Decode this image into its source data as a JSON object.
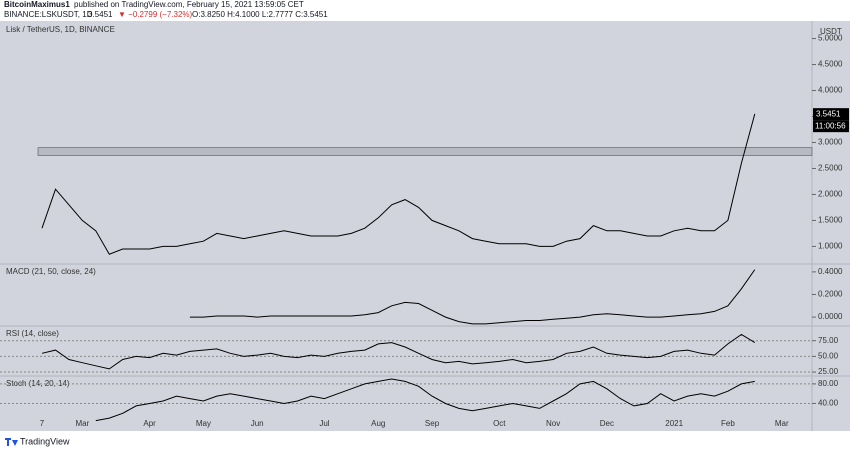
{
  "header": {
    "publisher": "BitcoinMaximus1",
    "published": "published on TradingView.com, February 15, 2021 13:59:05 CET",
    "symbol": "BINANCE:LSKUSDT, 1D",
    "last": "3.5451",
    "change": "▼ −0.2799 (−7.32%)",
    "ohlc": "O:3.8250 H:4.1000 L:2.7777 C:3.5451"
  },
  "footer": "TradingView",
  "chart_data": [
    {
      "type": "line",
      "title": "Lisk / TetherUS, 1D, BINANCE",
      "unit": "USDT",
      "categories": [
        "7",
        null,
        null,
        "Mar",
        null,
        null,
        null,
        null,
        "Apr",
        null,
        null,
        null,
        "May",
        null,
        null,
        null,
        "Jun",
        null,
        null,
        null,
        null,
        "Jul",
        null,
        null,
        null,
        "Aug",
        null,
        null,
        null,
        "Sep",
        null,
        null,
        null,
        null,
        "Oct",
        null,
        null,
        null,
        "Nov",
        null,
        null,
        null,
        "Dec",
        null,
        null,
        null,
        null,
        "2021",
        null,
        null,
        null,
        "Feb",
        null,
        null,
        null,
        "Mar"
      ],
      "series": [
        {
          "name": "LSKUSDT",
          "color": "#000000",
          "values": [
            1.35,
            2.1,
            1.8,
            1.5,
            1.3,
            0.85,
            0.95,
            0.95,
            0.95,
            1.0,
            1.0,
            1.05,
            1.1,
            1.25,
            1.2,
            1.15,
            1.2,
            1.25,
            1.3,
            1.25,
            1.2,
            1.2,
            1.2,
            1.25,
            1.35,
            1.55,
            1.8,
            1.9,
            1.75,
            1.5,
            1.4,
            1.3,
            1.15,
            1.1,
            1.05,
            1.05,
            1.05,
            1.0,
            1.0,
            1.1,
            1.15,
            1.4,
            1.3,
            1.3,
            1.25,
            1.2,
            1.2,
            1.3,
            1.35,
            1.3,
            1.3,
            1.5,
            2.6,
            3.55,
            null,
            null
          ]
        }
      ],
      "ylim": [
        0.7,
        5.28
      ],
      "yticks": [
        {
          "value": 1,
          "label": "1.0000"
        },
        {
          "value": 1.5,
          "label": "1.5000"
        },
        {
          "value": 2,
          "label": "2.0000"
        },
        {
          "value": 2.5,
          "label": "2.5000"
        },
        {
          "value": 3,
          "label": "3.0000"
        },
        {
          "value": 3.5,
          "label": "3.5000"
        },
        {
          "value": 4,
          "label": "4.0000"
        },
        {
          "value": 4.5,
          "label": "4.5000"
        },
        {
          "value": 5,
          "label": "5.0000"
        }
      ],
      "zone": [
        2.75,
        2.9
      ],
      "price_tag": {
        "value": 3.5451,
        "label": "3.5451"
      },
      "countdown": "11:00:56"
    },
    {
      "type": "line",
      "title": "MACD (21, 50, close, 24)",
      "series": [
        {
          "name": "MACD",
          "color": "#000000",
          "values": [
            null,
            null,
            null,
            null,
            null,
            null,
            null,
            null,
            null,
            null,
            null,
            0.0,
            0.0,
            0.01,
            0.01,
            0.01,
            0.0,
            0.01,
            0.01,
            0.01,
            0.01,
            0.01,
            0.01,
            0.01,
            0.02,
            0.04,
            0.1,
            0.13,
            0.12,
            0.06,
            0.0,
            -0.04,
            -0.06,
            -0.06,
            -0.05,
            -0.04,
            -0.03,
            -0.03,
            -0.02,
            -0.01,
            0.0,
            0.02,
            0.03,
            0.02,
            0.01,
            0.0,
            0.0,
            0.01,
            0.02,
            0.03,
            0.05,
            0.1,
            0.25,
            0.42,
            null,
            null
          ]
        }
      ],
      "ylim": [
        -0.07,
        0.452
      ],
      "yticks": [
        {
          "value": 0,
          "label": "0.0000"
        },
        {
          "value": 0.2,
          "label": "0.2000"
        },
        {
          "value": 0.4,
          "label": "0.4000"
        }
      ]
    },
    {
      "type": "line",
      "title": "RSI (14, close)",
      "series": [
        {
          "name": "RSI",
          "color": "#000000",
          "values": [
            55,
            60,
            45,
            40,
            35,
            30,
            45,
            50,
            48,
            55,
            52,
            58,
            60,
            62,
            55,
            50,
            52,
            55,
            50,
            48,
            52,
            50,
            55,
            58,
            60,
            70,
            72,
            65,
            55,
            45,
            40,
            42,
            38,
            40,
            42,
            45,
            40,
            42,
            45,
            55,
            58,
            65,
            55,
            52,
            50,
            48,
            50,
            58,
            60,
            55,
            52,
            70,
            85,
            72,
            null,
            null
          ]
        }
      ],
      "ylim": [
        20.3,
        95.3
      ],
      "yticks": [
        {
          "value": 25,
          "label": "25.00"
        },
        {
          "value": 50,
          "label": "50.00"
        },
        {
          "value": 75,
          "label": "75.00"
        }
      ]
    },
    {
      "type": "line",
      "title": "Stoch (14, 20, 14)",
      "series": [
        {
          "name": "Stoch",
          "color": "#000000",
          "values": [
            null,
            null,
            null,
            null,
            5,
            10,
            20,
            35,
            40,
            45,
            55,
            50,
            45,
            55,
            60,
            55,
            50,
            45,
            40,
            45,
            55,
            50,
            60,
            70,
            80,
            85,
            90,
            85,
            75,
            55,
            40,
            30,
            25,
            30,
            35,
            40,
            35,
            30,
            45,
            60,
            80,
            85,
            70,
            50,
            35,
            40,
            60,
            45,
            55,
            60,
            55,
            65,
            80,
            85,
            null,
            null
          ]
        }
      ],
      "ylim": [
        -4,
        92
      ],
      "yticks": [
        {
          "value": 40,
          "label": "40.00"
        },
        {
          "value": 80,
          "label": "80.00"
        }
      ]
    }
  ]
}
